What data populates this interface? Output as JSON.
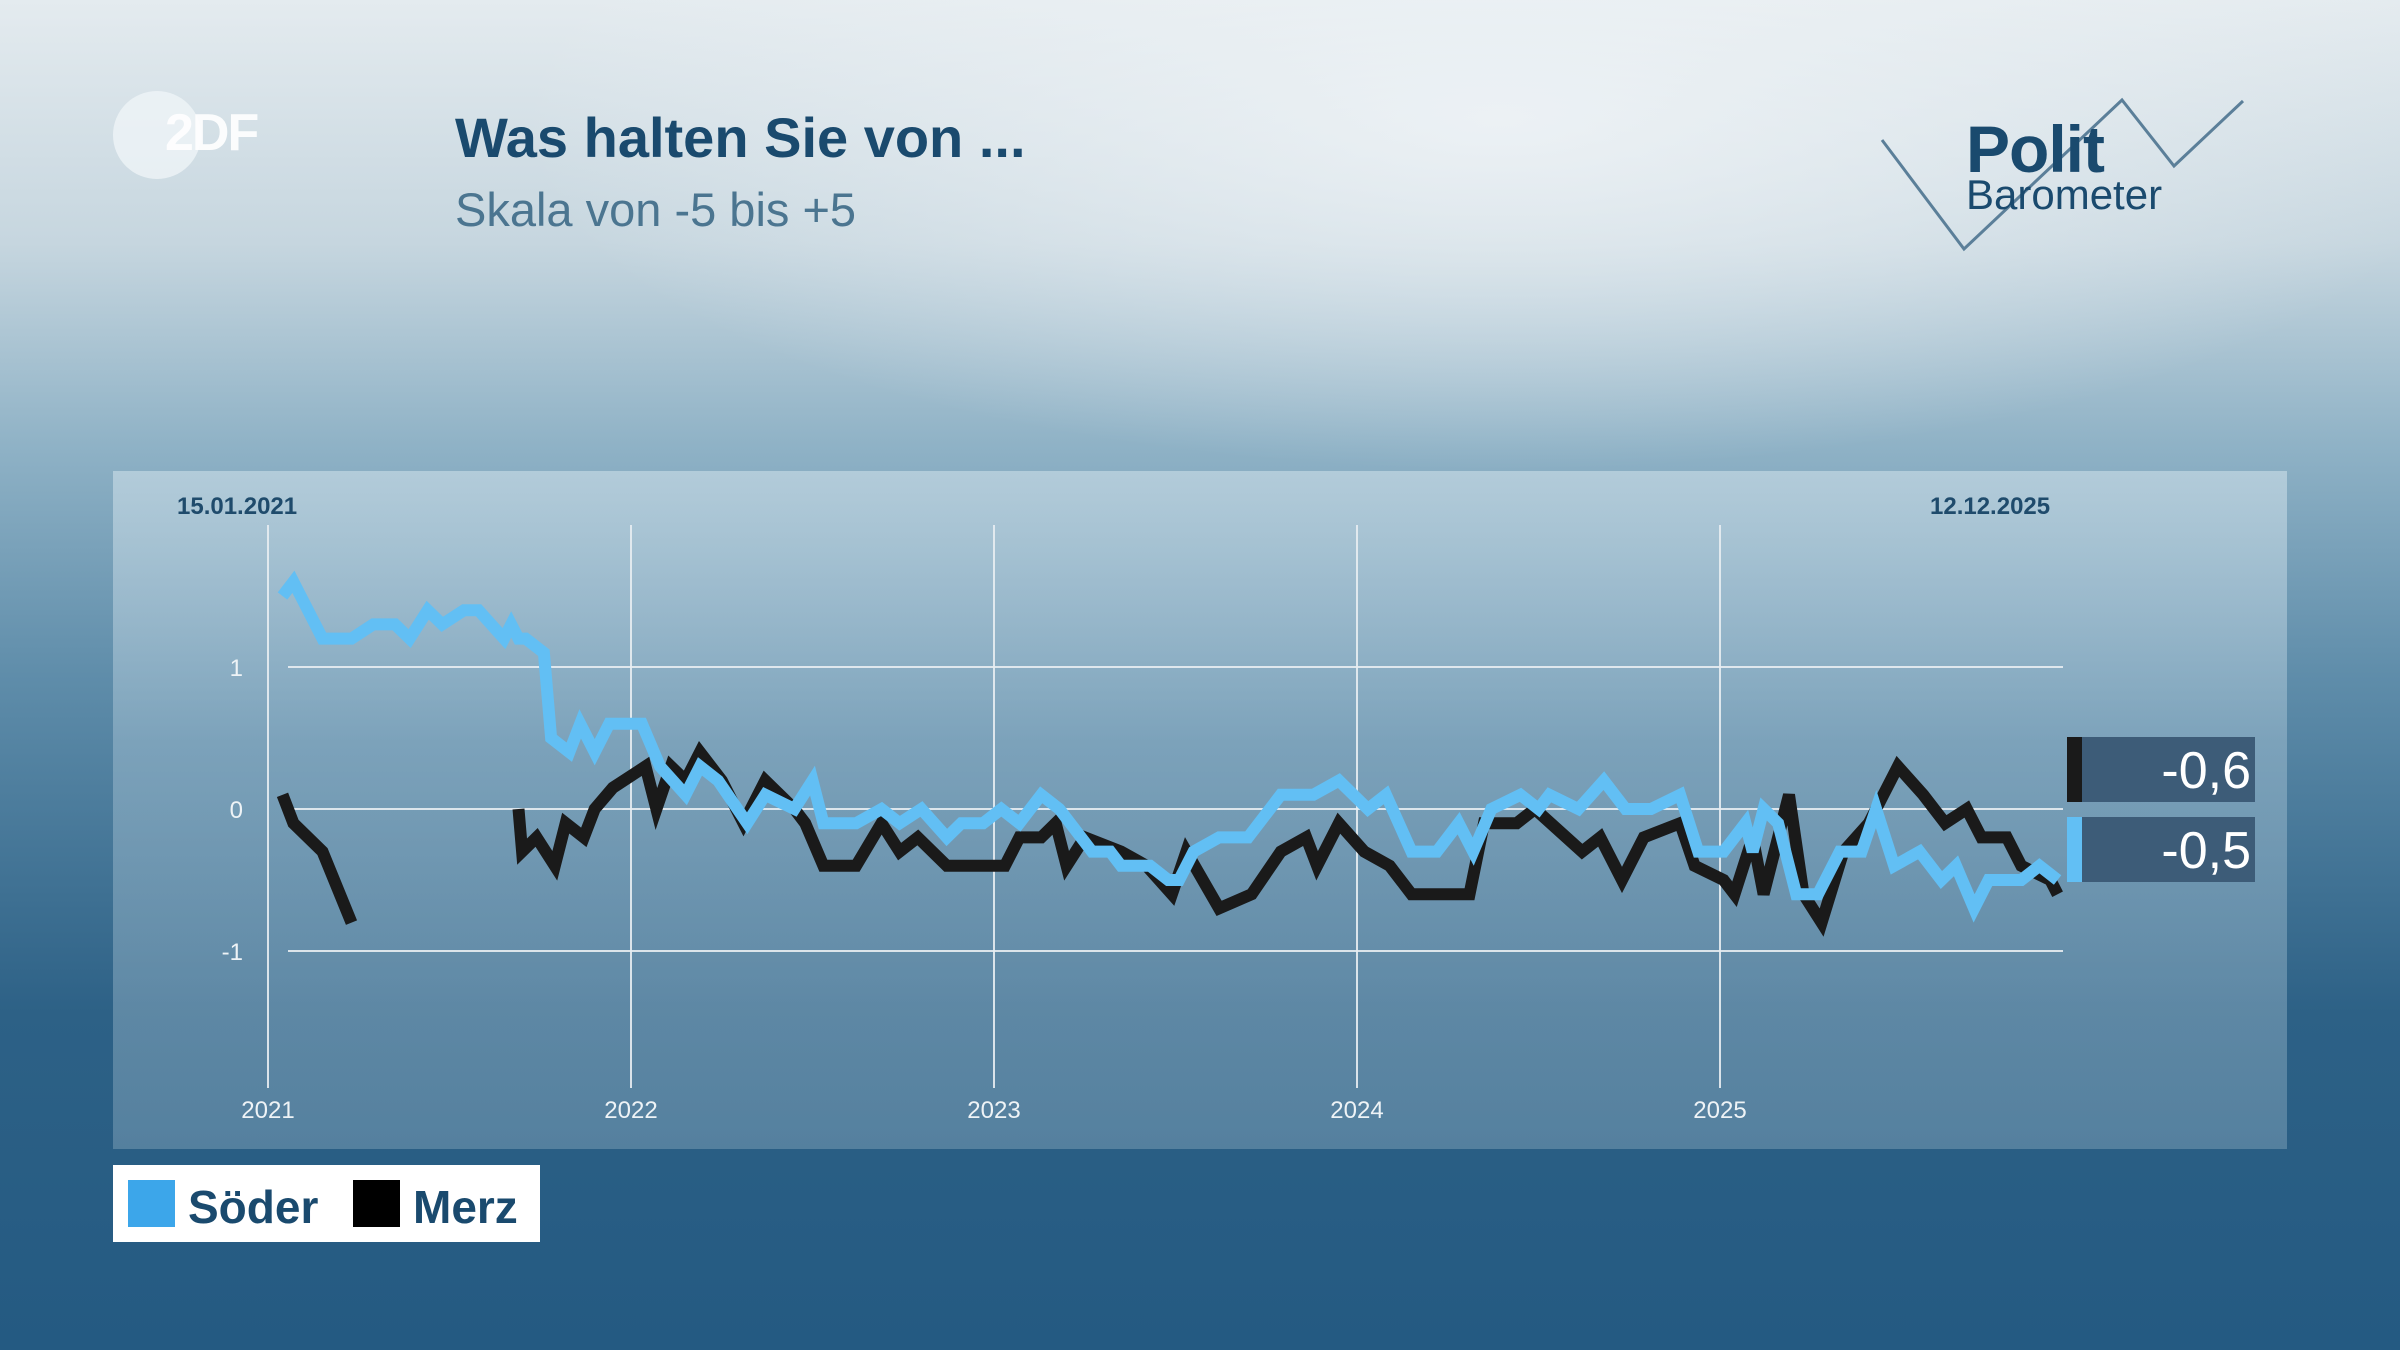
{
  "header": {
    "broadcaster_logo": "2DF",
    "title": "Was halten Sie von ...",
    "subtitle": "Skala von -5 bis +5",
    "brand_logo_line1": "Polit",
    "brand_logo_line2": "Barometer"
  },
  "chart": {
    "start_date": "15.01.2021",
    "end_date": "12.12.2025",
    "end_values": [
      {
        "series": "Merz",
        "label": "-0,6",
        "color": "#1a1a1a"
      },
      {
        "series": "Söder",
        "label": "-0,5",
        "color": "#62bff4"
      }
    ]
  },
  "legend": {
    "items": [
      {
        "label": "Söder",
        "color": "#3ca6ea"
      },
      {
        "label": "Merz",
        "color": "#000000"
      }
    ]
  },
  "colors": {
    "soeder_line": "#62bff4",
    "merz_line": "#1a1a1a",
    "title": "#1a4a6e",
    "end_box": "#3d5c78",
    "grid": "#e8eef2"
  },
  "chart_data": {
    "type": "line",
    "title": "Was halten Sie von ...",
    "subtitle": "Skala von -5 bis +5",
    "xlabel": "",
    "ylabel": "",
    "x_ticks": [
      "2021",
      "2022",
      "2023",
      "2024",
      "2025"
    ],
    "y_ticks": [
      1,
      0,
      -1
    ],
    "y_tick_labels": [
      "1",
      "0",
      "-1"
    ],
    "ylim": [
      -1.9,
      2.0
    ],
    "xlim": [
      2021.0,
      2025.95
    ],
    "grid": true,
    "legend_position": "bottom-left",
    "annotations": [
      "15.01.2021",
      "12.12.2025",
      "-0,6",
      "-0,5"
    ],
    "series": [
      {
        "name": "Söder",
        "color": "#62bff4",
        "points": [
          [
            2021.04,
            1.5
          ],
          [
            2021.07,
            1.6
          ],
          [
            2021.15,
            1.2
          ],
          [
            2021.23,
            1.2
          ],
          [
            2021.29,
            1.3
          ],
          [
            2021.35,
            1.3
          ],
          [
            2021.39,
            1.2
          ],
          [
            2021.44,
            1.4
          ],
          [
            2021.48,
            1.3
          ],
          [
            2021.54,
            1.4
          ],
          [
            2021.58,
            1.4
          ],
          [
            2021.65,
            1.2
          ],
          [
            2021.67,
            1.3
          ],
          [
            2021.69,
            1.2
          ],
          [
            2021.71,
            1.2
          ],
          [
            2021.76,
            1.1
          ],
          [
            2021.78,
            0.5
          ],
          [
            2021.83,
            0.4
          ],
          [
            2021.86,
            0.6
          ],
          [
            2021.9,
            0.4
          ],
          [
            2021.94,
            0.6
          ],
          [
            2022.03,
            0.6
          ],
          [
            2022.08,
            0.3
          ],
          [
            2022.15,
            0.1
          ],
          [
            2022.19,
            0.3
          ],
          [
            2022.24,
            0.2
          ],
          [
            2022.32,
            -0.1
          ],
          [
            2022.37,
            0.1
          ],
          [
            2022.45,
            0.0
          ],
          [
            2022.5,
            0.2
          ],
          [
            2022.53,
            -0.1
          ],
          [
            2022.62,
            -0.1
          ],
          [
            2022.69,
            0.0
          ],
          [
            2022.74,
            -0.1
          ],
          [
            2022.8,
            0.0
          ],
          [
            2022.87,
            -0.2
          ],
          [
            2022.91,
            -0.1
          ],
          [
            2022.97,
            -0.1
          ],
          [
            2023.02,
            0.0
          ],
          [
            2023.07,
            -0.1
          ],
          [
            2023.13,
            0.1
          ],
          [
            2023.18,
            0.0
          ],
          [
            2023.24,
            -0.2
          ],
          [
            2023.27,
            -0.3
          ],
          [
            2023.32,
            -0.3
          ],
          [
            2023.35,
            -0.4
          ],
          [
            2023.43,
            -0.4
          ],
          [
            2023.48,
            -0.5
          ],
          [
            2023.51,
            -0.5
          ],
          [
            2023.55,
            -0.3
          ],
          [
            2023.62,
            -0.2
          ],
          [
            2023.7,
            -0.2
          ],
          [
            2023.79,
            0.1
          ],
          [
            2023.88,
            0.1
          ],
          [
            2023.95,
            0.2
          ],
          [
            2024.03,
            0.0
          ],
          [
            2024.08,
            0.1
          ],
          [
            2024.15,
            -0.3
          ],
          [
            2024.22,
            -0.3
          ],
          [
            2024.28,
            -0.1
          ],
          [
            2024.32,
            -0.3
          ],
          [
            2024.37,
            0.0
          ],
          [
            2024.45,
            0.1
          ],
          [
            2024.5,
            0.0
          ],
          [
            2024.53,
            0.1
          ],
          [
            2024.61,
            0.0
          ],
          [
            2024.68,
            0.2
          ],
          [
            2024.74,
            0.0
          ],
          [
            2024.81,
            0.0
          ],
          [
            2024.89,
            0.1
          ],
          [
            2024.94,
            -0.3
          ],
          [
            2025.01,
            -0.3
          ],
          [
            2025.07,
            -0.1
          ],
          [
            2025.09,
            -0.3
          ],
          [
            2025.12,
            0.0
          ],
          [
            2025.16,
            -0.1
          ],
          [
            2025.21,
            -0.6
          ],
          [
            2025.27,
            -0.6
          ],
          [
            2025.33,
            -0.3
          ],
          [
            2025.39,
            -0.3
          ],
          [
            2025.43,
            0.0
          ],
          [
            2025.48,
            -0.4
          ],
          [
            2025.55,
            -0.3
          ],
          [
            2025.61,
            -0.5
          ],
          [
            2025.65,
            -0.4
          ],
          [
            2025.7,
            -0.7
          ],
          [
            2025.74,
            -0.5
          ],
          [
            2025.83,
            -0.5
          ],
          [
            2025.88,
            -0.4
          ],
          [
            2025.93,
            -0.5
          ]
        ]
      },
      {
        "name": "Merz",
        "color": "#1a1a1a",
        "segments": [
          [
            [
              2021.04,
              0.1
            ],
            [
              2021.07,
              -0.1
            ],
            [
              2021.15,
              -0.3
            ],
            [
              2021.23,
              -0.8
            ]
          ],
          [
            [
              2021.69,
              0.0
            ],
            [
              2021.7,
              -0.3
            ],
            [
              2021.74,
              -0.2
            ],
            [
              2021.79,
              -0.4
            ],
            [
              2021.82,
              -0.1
            ],
            [
              2021.87,
              -0.2
            ],
            [
              2021.9,
              0.0
            ],
            [
              2021.95,
              0.15
            ],
            [
              2022.04,
              0.3
            ],
            [
              2022.07,
              0.0
            ],
            [
              2022.11,
              0.3
            ],
            [
              2022.15,
              0.2
            ],
            [
              2022.19,
              0.4
            ],
            [
              2022.25,
              0.2
            ],
            [
              2022.31,
              -0.1
            ],
            [
              2022.37,
              0.2
            ],
            [
              2022.45,
              0.0
            ],
            [
              2022.48,
              -0.1
            ],
            [
              2022.53,
              -0.4
            ],
            [
              2022.62,
              -0.4
            ],
            [
              2022.69,
              -0.1
            ],
            [
              2022.74,
              -0.3
            ],
            [
              2022.79,
              -0.2
            ],
            [
              2022.87,
              -0.4
            ],
            [
              2022.98,
              -0.4
            ],
            [
              2023.03,
              -0.4
            ],
            [
              2023.07,
              -0.2
            ],
            [
              2023.13,
              -0.2
            ],
            [
              2023.17,
              -0.1
            ],
            [
              2023.2,
              -0.4
            ],
            [
              2023.25,
              -0.2
            ],
            [
              2023.35,
              -0.3
            ],
            [
              2023.42,
              -0.4
            ],
            [
              2023.49,
              -0.6
            ],
            [
              2023.53,
              -0.3
            ],
            [
              2023.62,
              -0.7
            ],
            [
              2023.71,
              -0.6
            ],
            [
              2023.79,
              -0.3
            ],
            [
              2023.86,
              -0.2
            ],
            [
              2023.89,
              -0.4
            ],
            [
              2023.95,
              -0.1
            ],
            [
              2024.02,
              -0.3
            ],
            [
              2024.09,
              -0.4
            ],
            [
              2024.15,
              -0.6
            ],
            [
              2024.31,
              -0.6
            ],
            [
              2024.35,
              -0.1
            ],
            [
              2024.44,
              -0.1
            ],
            [
              2024.49,
              0.0
            ],
            [
              2024.62,
              -0.3
            ],
            [
              2024.67,
              -0.2
            ],
            [
              2024.73,
              -0.5
            ],
            [
              2024.79,
              -0.2
            ],
            [
              2024.89,
              -0.1
            ],
            [
              2024.93,
              -0.4
            ],
            [
              2025.01,
              -0.5
            ],
            [
              2025.04,
              -0.6
            ],
            [
              2025.09,
              -0.2
            ],
            [
              2025.12,
              -0.6
            ],
            [
              2025.19,
              0.1
            ],
            [
              2025.23,
              -0.6
            ],
            [
              2025.28,
              -0.8
            ],
            [
              2025.34,
              -0.3
            ],
            [
              2025.41,
              -0.1
            ],
            [
              2025.49,
              0.3
            ],
            [
              2025.56,
              0.1
            ],
            [
              2025.62,
              -0.1
            ],
            [
              2025.68,
              0.0
            ],
            [
              2025.72,
              -0.2
            ],
            [
              2025.79,
              -0.2
            ],
            [
              2025.83,
              -0.4
            ],
            [
              2025.91,
              -0.5
            ],
            [
              2025.93,
              -0.6
            ]
          ]
        ]
      }
    ]
  }
}
